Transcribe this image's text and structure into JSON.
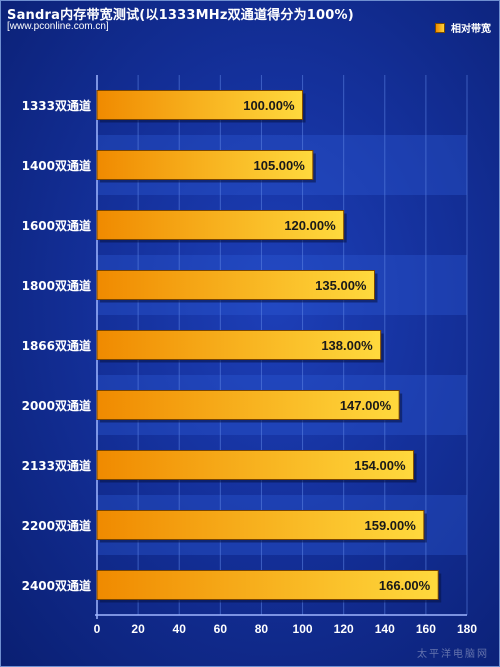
{
  "chart_data": {
    "type": "bar",
    "orientation": "horizontal",
    "title": "Sandra内存带宽测试(以1333MHz双通道得分为100%)",
    "source": "[www.pconline.com.cn]",
    "legend": {
      "position": "top-right",
      "entries": [
        "相对带宽"
      ]
    },
    "categories": [
      "1333双通道",
      "1400双通道",
      "1600双通道",
      "1800双通道",
      "1866双通道",
      "2000双通道",
      "2133双通道",
      "2200双通道",
      "2400双通道"
    ],
    "series": [
      {
        "name": "相对带宽",
        "values": [
          100,
          105,
          120,
          135,
          138,
          147,
          154,
          159,
          166
        ],
        "labels": [
          "100.00%",
          "105.00%",
          "120.00%",
          "135.00%",
          "138.00%",
          "147.00%",
          "154.00%",
          "159.00%",
          "166.00%"
        ]
      }
    ],
    "xlim": [
      0,
      180
    ],
    "xticks": [
      0,
      20,
      40,
      60,
      80,
      100,
      120,
      140,
      160,
      180
    ],
    "grid": true,
    "colors": {
      "bar_start": "#f08a00",
      "bar_end": "#ffd93d",
      "bar_border": "#7a4600",
      "band": "#2f5bd6"
    }
  },
  "watermark": "太平洋电脑网"
}
